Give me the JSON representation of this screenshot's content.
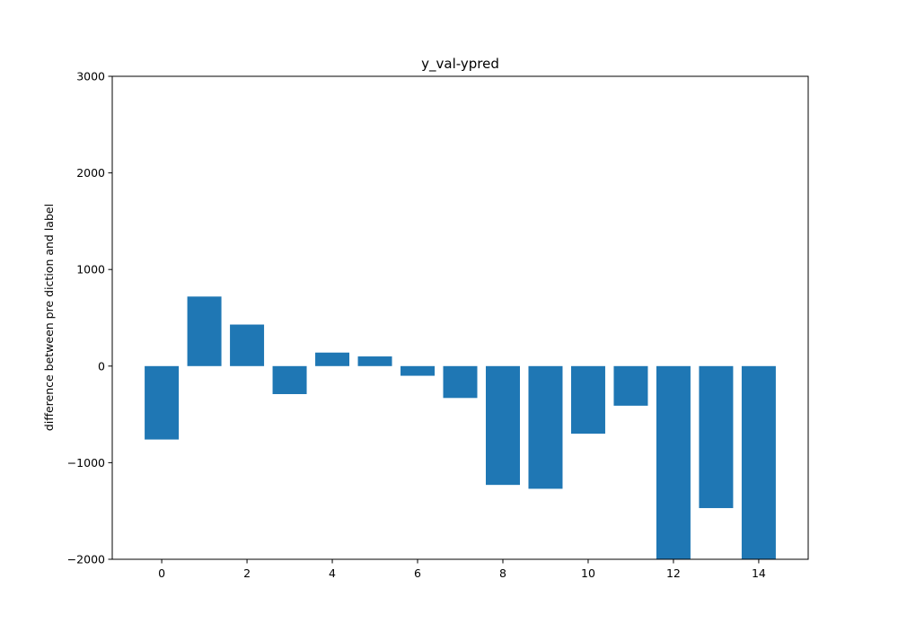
{
  "chart_data": {
    "type": "bar",
    "title": "y_val-ypred",
    "xlabel": "",
    "ylabel": "difference between pre diction and label",
    "x": [
      0,
      1,
      2,
      3,
      4,
      5,
      6,
      7,
      8,
      9,
      10,
      11,
      12,
      13,
      14
    ],
    "values": [
      -760,
      720,
      430,
      -290,
      140,
      100,
      -100,
      -330,
      -1230,
      -1270,
      -700,
      -410,
      -2000,
      -1470,
      -2000
    ],
    "xlim": [
      -1.16,
      15.16
    ],
    "ylim": [
      -2000,
      3000
    ],
    "xticks": [
      0,
      2,
      4,
      6,
      8,
      10,
      12,
      14
    ],
    "yticks": [
      -2000,
      -1000,
      0,
      1000,
      2000,
      3000
    ],
    "ytick_labels": [
      "−2000",
      "−1000",
      "0",
      "1000",
      "2000",
      "3000"
    ],
    "grid": false,
    "bar_color": "#1f77b4"
  }
}
